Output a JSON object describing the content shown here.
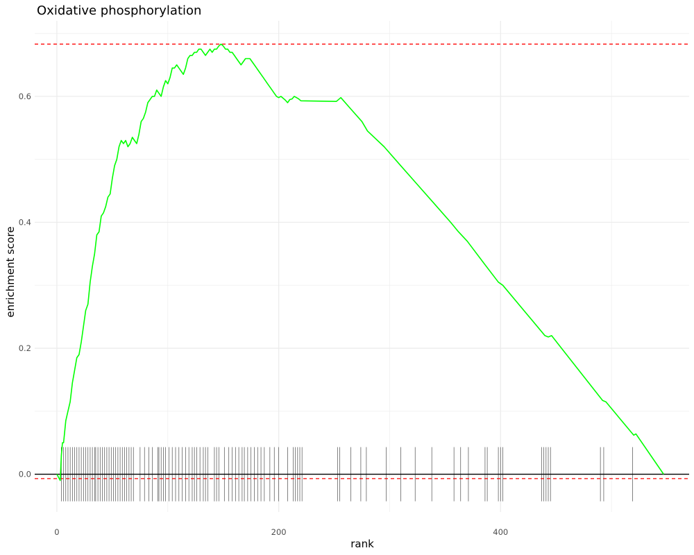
{
  "chart_data": {
    "type": "line",
    "title": "Oxidative phosphorylation",
    "xlabel": "rank",
    "ylabel": "enrichment score",
    "xlim": [
      -20,
      570
    ],
    "ylim": [
      -0.06,
      0.72
    ],
    "x_ticks": [
      0,
      200,
      400
    ],
    "y_ticks": [
      0.0,
      0.2,
      0.4,
      0.6
    ],
    "y_tick_labels": [
      "0.0",
      "0.2",
      "0.4",
      "0.6"
    ],
    "grid": true,
    "colors": {
      "curve": "#00ff00",
      "threshold": "#ff0000",
      "baseline": "#000000",
      "hits": "#4d4d4d",
      "grid": "#ebebeb"
    },
    "thresholds": [
      0.683,
      -0.007
    ],
    "baseline": 0,
    "hits_band": [
      -0.043,
      0.043
    ],
    "series": [
      {
        "x": [
          0,
          3,
          4,
          5,
          6,
          8,
          10,
          12,
          14,
          16,
          18,
          20,
          22,
          24,
          26,
          28,
          30,
          32,
          34,
          36,
          38,
          40,
          42,
          44,
          46,
          48,
          50,
          52,
          54,
          56,
          58,
          60,
          62,
          64,
          66,
          68,
          70,
          72,
          74,
          76,
          78,
          80,
          82,
          84,
          86,
          88,
          90,
          92,
          94,
          96,
          98,
          100,
          102,
          104,
          106,
          108,
          110,
          112,
          114,
          116,
          118,
          120,
          122,
          124,
          126,
          128,
          130,
          132,
          134,
          136,
          138,
          140,
          142,
          144,
          146,
          148,
          150,
          152,
          154,
          156,
          158,
          160,
          162,
          164,
          166,
          168,
          170,
          172,
          174,
          176,
          178,
          180,
          182,
          184,
          186,
          188,
          190,
          192,
          194,
          196,
          198,
          200,
          202,
          204,
          206,
          208,
          210,
          212,
          214,
          216,
          218,
          220,
          252,
          256,
          265,
          275,
          280,
          295,
          310,
          325,
          340,
          355,
          362,
          370,
          385,
          398,
          402,
          440,
          443,
          446,
          492,
          495,
          520,
          522,
          547
        ],
        "y": [
          0.0,
          -0.01,
          0.03,
          0.05,
          0.05,
          0.085,
          0.1,
          0.115,
          0.145,
          0.165,
          0.185,
          0.19,
          0.21,
          0.235,
          0.26,
          0.27,
          0.305,
          0.33,
          0.35,
          0.38,
          0.385,
          0.41,
          0.415,
          0.425,
          0.44,
          0.445,
          0.47,
          0.49,
          0.5,
          0.52,
          0.53,
          0.525,
          0.53,
          0.52,
          0.525,
          0.535,
          0.53,
          0.525,
          0.54,
          0.56,
          0.565,
          0.575,
          0.59,
          0.595,
          0.6,
          0.6,
          0.61,
          0.605,
          0.6,
          0.615,
          0.625,
          0.62,
          0.63,
          0.645,
          0.645,
          0.65,
          0.645,
          0.64,
          0.635,
          0.645,
          0.66,
          0.665,
          0.665,
          0.67,
          0.67,
          0.675,
          0.675,
          0.67,
          0.665,
          0.67,
          0.675,
          0.67,
          0.675,
          0.675,
          0.68,
          0.683,
          0.68,
          0.675,
          0.675,
          0.67,
          0.67,
          0.665,
          0.66,
          0.655,
          0.65,
          0.655,
          0.66,
          0.66,
          0.66,
          0.655,
          0.65,
          0.645,
          0.64,
          0.635,
          0.63,
          0.625,
          0.62,
          0.615,
          0.61,
          0.605,
          0.6,
          0.598,
          0.6,
          0.597,
          0.594,
          0.59,
          0.595,
          0.596,
          0.6,
          0.598,
          0.596,
          0.593,
          0.592,
          0.598,
          0.58,
          0.56,
          0.545,
          0.52,
          0.49,
          0.46,
          0.43,
          0.4,
          0.385,
          0.37,
          0.335,
          0.305,
          0.3,
          0.22,
          0.218,
          0.22,
          0.117,
          0.115,
          0.062,
          0.064,
          0.0
        ]
      }
    ],
    "hits": [
      4,
      6,
      8,
      10,
      12,
      14,
      16,
      18,
      20,
      22,
      24,
      26,
      28,
      30,
      32,
      34,
      35,
      37,
      39,
      41,
      43,
      45,
      47,
      49,
      51,
      53,
      55,
      57,
      59,
      61,
      63,
      65,
      67,
      69,
      75,
      79,
      83,
      86,
      91,
      92,
      94,
      96,
      98,
      101,
      104,
      107,
      110,
      113,
      116,
      119,
      122,
      124,
      126,
      129,
      132,
      134,
      136,
      142,
      144,
      146,
      151,
      155,
      158,
      161,
      164,
      167,
      169,
      172,
      175,
      178,
      181,
      184,
      187,
      192,
      196,
      200,
      208,
      213,
      215,
      217,
      219,
      221,
      253,
      255,
      265,
      274,
      279,
      297,
      310,
      323,
      338,
      358,
      364,
      371,
      386,
      388,
      398,
      400,
      402,
      437,
      439,
      441,
      443,
      445,
      490,
      493,
      519
    ]
  }
}
